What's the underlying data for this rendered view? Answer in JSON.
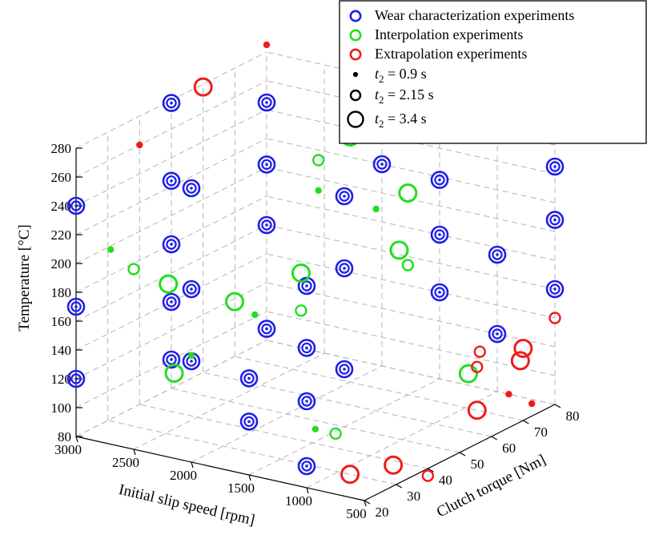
{
  "chart_data": {
    "type": "scatter",
    "projection": "3d",
    "title": "",
    "xlabel": "Clutch torque [Nm]",
    "ylabel": "Initial slip speed [rpm]",
    "zlabel": "Temperature [°C]",
    "xlim": [
      20,
      80
    ],
    "ylim": [
      500,
      3000
    ],
    "zlim": [
      80,
      280
    ],
    "xticks": [
      "20",
      "30",
      "40",
      "50",
      "60",
      "70",
      "80"
    ],
    "yticks": [
      "500",
      "1000",
      "1500",
      "2000",
      "2500",
      "3000"
    ],
    "zticks": [
      "80",
      "100",
      "120",
      "140",
      "160",
      "180",
      "200",
      "220",
      "240",
      "260",
      "280"
    ],
    "grid": true,
    "legend_position": "top-right",
    "colors": {
      "wear": "#1f1fe6",
      "interpolation": "#22dd22",
      "extrapolation": "#ee1c1c"
    },
    "legend": [
      {
        "kind": "series",
        "key": "wear",
        "label": "Wear characterization experiments"
      },
      {
        "kind": "series",
        "key": "interpolation",
        "label": "Interpolation experiments"
      },
      {
        "kind": "series",
        "key": "extrapolation",
        "label": "Extrapolation experiments"
      },
      {
        "kind": "size",
        "var": "t",
        "sub": "2",
        "rest": " = 0.9 s",
        "t2": 0.9
      },
      {
        "kind": "size",
        "var": "t",
        "sub": "2",
        "rest": " = 2.15 s",
        "t2": 2.15
      },
      {
        "kind": "size",
        "var": "t",
        "sub": "2",
        "rest": " = 3.4 s",
        "t2": 3.4
      }
    ],
    "series": [
      {
        "name": "Wear characterization experiments",
        "key": "wear",
        "point_style": "nested-rings",
        "points": [
          {
            "torque": 20,
            "speed": 3000,
            "temp": 120
          },
          {
            "torque": 20,
            "speed": 3000,
            "temp": 170
          },
          {
            "torque": 20,
            "speed": 3000,
            "temp": 240
          },
          {
            "torque": 20,
            "speed": 2000,
            "temp": 150
          },
          {
            "torque": 20,
            "speed": 2000,
            "temp": 200
          },
          {
            "torque": 20,
            "speed": 2000,
            "temp": 270
          },
          {
            "torque": 20,
            "speed": 1500,
            "temp": 117
          },
          {
            "torque": 20,
            "speed": 1500,
            "temp": 147
          },
          {
            "torque": 20,
            "speed": 1000,
            "temp": 95
          },
          {
            "torque": 20,
            "speed": 1000,
            "temp": 140
          },
          {
            "torque": 20,
            "speed": 1000,
            "temp": 177
          },
          {
            "torque": 20,
            "speed": 1000,
            "temp": 220
          },
          {
            "torque": 50,
            "speed": 3000,
            "temp": 100
          },
          {
            "torque": 50,
            "speed": 3000,
            "temp": 140
          },
          {
            "torque": 50,
            "speed": 3000,
            "temp": 180
          },
          {
            "torque": 50,
            "speed": 3000,
            "temp": 224
          },
          {
            "torque": 50,
            "speed": 3000,
            "temp": 278
          },
          {
            "torque": 50,
            "speed": 1500,
            "temp": 120
          },
          {
            "torque": 50,
            "speed": 1500,
            "temp": 190
          },
          {
            "torque": 50,
            "speed": 1500,
            "temp": 240
          },
          {
            "torque": 80,
            "speed": 3000,
            "temp": 88
          },
          {
            "torque": 80,
            "speed": 3000,
            "temp": 160
          },
          {
            "torque": 80,
            "speed": 3000,
            "temp": 202
          },
          {
            "torque": 80,
            "speed": 3000,
            "temp": 245
          },
          {
            "torque": 80,
            "speed": 2000,
            "temp": 220
          },
          {
            "torque": 80,
            "speed": 1500,
            "temp": 140
          },
          {
            "torque": 80,
            "speed": 1500,
            "temp": 180
          },
          {
            "torque": 80,
            "speed": 1500,
            "temp": 218
          },
          {
            "torque": 80,
            "speed": 1000,
            "temp": 120
          },
          {
            "torque": 80,
            "speed": 1000,
            "temp": 175
          },
          {
            "torque": 80,
            "speed": 500,
            "temp": 160
          },
          {
            "torque": 80,
            "speed": 500,
            "temp": 208
          },
          {
            "torque": 80,
            "speed": 500,
            "temp": 245
          }
        ]
      },
      {
        "name": "Interpolation experiments",
        "key": "interpolation",
        "point_style": "ring",
        "points": [
          {
            "torque": 20,
            "speed": 2700,
            "temp": 215,
            "t2": 0.9
          },
          {
            "torque": 20,
            "speed": 2500,
            "temp": 205,
            "t2": 2.15
          },
          {
            "torque": 20,
            "speed": 2200,
            "temp": 200,
            "t2": 3.4
          },
          {
            "torque": 20,
            "speed": 2000,
            "temp": 154,
            "t2": 0.9
          },
          {
            "torque": 30,
            "speed": 1900,
            "temp": 182,
            "t2": 3.4
          },
          {
            "torque": 40,
            "speed": 2700,
            "temp": 107,
            "t2": 3.4
          },
          {
            "torque": 40,
            "speed": 2000,
            "temp": 160,
            "t2": 0.9
          },
          {
            "torque": 40,
            "speed": 1600,
            "temp": 196,
            "t2": 3.4
          },
          {
            "torque": 40,
            "speed": 1600,
            "temp": 170,
            "t2": 2.15
          },
          {
            "torque": 30,
            "speed": 1200,
            "temp": 106,
            "t2": 0.9
          },
          {
            "torque": 40,
            "speed": 1300,
            "temp": 90,
            "t2": 2.15
          },
          {
            "torque": 60,
            "speed": 2000,
            "temp": 245,
            "t2": 2.15
          },
          {
            "torque": 60,
            "speed": 2000,
            "temp": 224,
            "t2": 0.9
          },
          {
            "torque": 60,
            "speed": 1500,
            "temp": 220,
            "t2": 0.9
          },
          {
            "torque": 60,
            "speed": 1300,
            "temp": 195,
            "t2": 3.4
          },
          {
            "torque": 70,
            "speed": 2000,
            "temp": 250,
            "t2": 3.4
          },
          {
            "torque": 70,
            "speed": 1500,
            "temp": 220,
            "t2": 3.4
          },
          {
            "torque": 70,
            "speed": 1500,
            "temp": 170,
            "t2": 2.15
          },
          {
            "torque": 60,
            "speed": 700,
            "temp": 120,
            "t2": 3.4
          }
        ]
      },
      {
        "name": "Extrapolation experiments",
        "key": "extrapolation",
        "point_style": "ring",
        "points": [
          {
            "torque": 80,
            "speed": 3000,
            "temp": 285,
            "t2": 0.9
          },
          {
            "torque": 60,
            "speed": 3000,
            "temp": 278,
            "t2": 3.4
          },
          {
            "torque": 40,
            "speed": 3000,
            "temp": 260,
            "t2": 0.9
          },
          {
            "torque": 80,
            "speed": 2000,
            "temp": 265,
            "t2": 3.4
          },
          {
            "torque": 80,
            "speed": 1800,
            "temp": 248,
            "t2": 0.9
          },
          {
            "torque": 60,
            "speed": 600,
            "temp": 137,
            "t2": 2.15
          },
          {
            "torque": 70,
            "speed": 500,
            "temp": 130,
            "t2": 3.4
          },
          {
            "torque": 70,
            "speed": 900,
            "temp": 110,
            "t2": 2.15
          },
          {
            "torque": 80,
            "speed": 800,
            "temp": 105,
            "t2": 3.4
          },
          {
            "torque": 80,
            "speed": 500,
            "temp": 140,
            "t2": 2.15
          },
          {
            "torque": 70,
            "speed": 900,
            "temp": 80,
            "t2": 3.4
          },
          {
            "torque": 80,
            "speed": 900,
            "temp": 80,
            "t2": 0.9
          },
          {
            "torque": 80,
            "speed": 700,
            "temp": 77,
            "t2": 0.9
          },
          {
            "torque": 30,
            "speed": 900,
            "temp": 80,
            "t2": 3.4
          },
          {
            "torque": 40,
            "speed": 800,
            "temp": 77,
            "t2": 3.4
          },
          {
            "torque": 40,
            "speed": 500,
            "temp": 75,
            "t2": 2.15
          }
        ]
      }
    ]
  }
}
